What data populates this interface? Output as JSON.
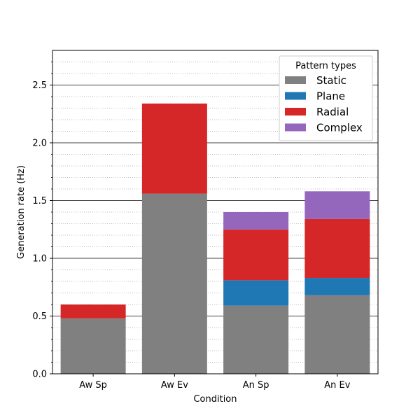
{
  "chart_data": {
    "type": "bar",
    "stacked": true,
    "categories": [
      "Aw Sp",
      "Aw Ev",
      "An Sp",
      "An Ev"
    ],
    "series": [
      {
        "name": "Static",
        "color": "#808080",
        "values": [
          0.48,
          1.56,
          0.59,
          0.68
        ]
      },
      {
        "name": "Plane",
        "color": "#1f77b4",
        "values": [
          0.0,
          0.0,
          0.22,
          0.15
        ]
      },
      {
        "name": "Radial",
        "color": "#d62728",
        "values": [
          0.12,
          0.78,
          0.44,
          0.51
        ]
      },
      {
        "name": "Complex",
        "color": "#9467bd",
        "values": [
          0.0,
          0.0,
          0.15,
          0.24
        ]
      }
    ],
    "xlabel": "Condition",
    "ylabel": "Generation rate (Hz)",
    "ylim": [
      0,
      2.8
    ],
    "yticks": [
      0.0,
      0.5,
      1.0,
      1.5,
      2.0,
      2.5
    ],
    "ytick_labels": [
      "0.0",
      "0.5",
      "1.0",
      "1.5",
      "2.0",
      "2.5"
    ],
    "major_grid": true,
    "minor_grid": true,
    "legend": {
      "title": "Pattern types",
      "position": "top-right"
    }
  }
}
